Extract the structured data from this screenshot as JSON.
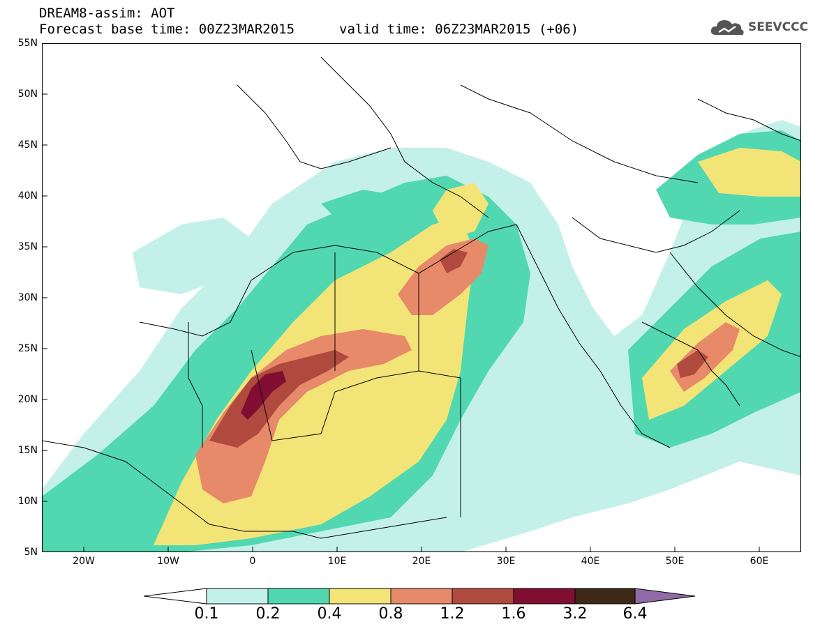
{
  "header": {
    "title_line1": "DREAM8-assim: AOT",
    "title_line2": "Forecast base time: 00Z23MAR2015",
    "valid_time": "valid time: 06Z23MAR2015 (+06)",
    "logo_text": "SEEVCCC"
  },
  "map": {
    "lat_labels": [
      "55N",
      "50N",
      "45N",
      "40N",
      "35N",
      "30N",
      "25N",
      "20N",
      "15N",
      "10N",
      "5N"
    ],
    "lon_labels": [
      "20W",
      "10W",
      "0",
      "10E",
      "20E",
      "30E",
      "40E",
      "50E",
      "60E"
    ],
    "extent": {
      "lon_min": -25,
      "lon_max": 65,
      "lat_min": 5,
      "lat_max": 55
    }
  },
  "legend": {
    "levels": [
      "0.1",
      "0.2",
      "0.4",
      "0.8",
      "1.2",
      "1.6",
      "3.2",
      "6.4"
    ],
    "colors": [
      "#ffffff",
      "#c4f0ea",
      "#52d8b0",
      "#f3e478",
      "#e78a6a",
      "#b0493e",
      "#820d32",
      "#3e2817",
      "#8f6aa5"
    ]
  }
}
